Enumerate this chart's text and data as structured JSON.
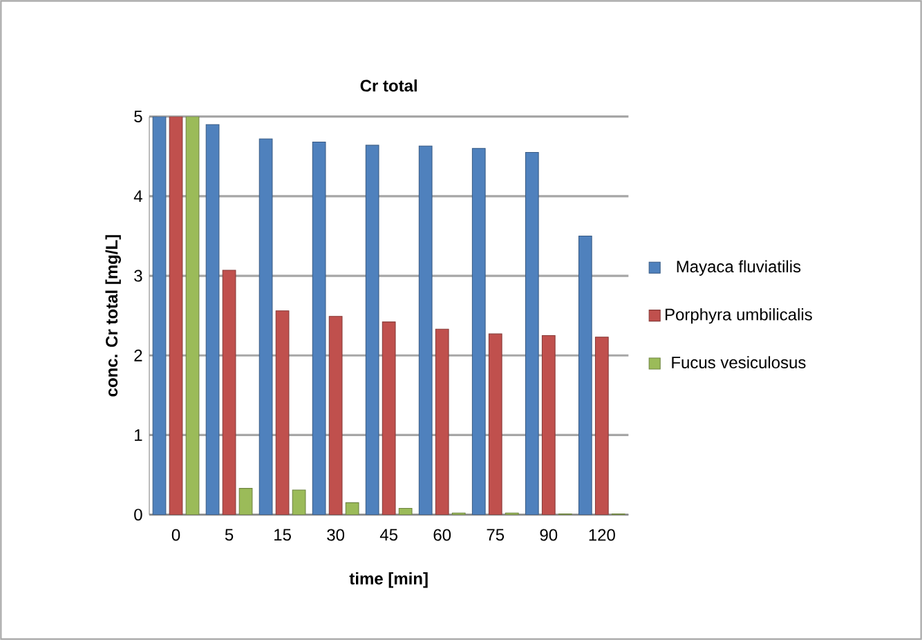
{
  "chart_data": {
    "type": "bar",
    "title": "Cr total",
    "xlabel": "time [min]",
    "ylabel": "conc. Cr total [mg/L]",
    "categories": [
      "0",
      "5",
      "15",
      "30",
      "45",
      "60",
      "75",
      "90",
      "120"
    ],
    "series": [
      {
        "name": "Mayaca fluviatilis",
        "color": "#4f81bd",
        "values": [
          5.0,
          4.9,
          4.72,
          4.68,
          4.64,
          4.63,
          4.6,
          4.55,
          3.5
        ]
      },
      {
        "name": "Porphyra umbilicalis",
        "color": "#c0504d",
        "values": [
          5.0,
          3.07,
          2.56,
          2.49,
          2.42,
          2.33,
          2.27,
          2.25,
          2.23
        ]
      },
      {
        "name": "Fucus vesiculosus",
        "color": "#9bbb59",
        "values": [
          5.0,
          0.33,
          0.31,
          0.15,
          0.08,
          0.02,
          0.02,
          0.01,
          0.01
        ]
      }
    ],
    "ylim": [
      0,
      5
    ],
    "yticks": [
      0,
      1,
      2,
      3,
      4,
      5
    ],
    "grid": "y",
    "legend": "right"
  }
}
